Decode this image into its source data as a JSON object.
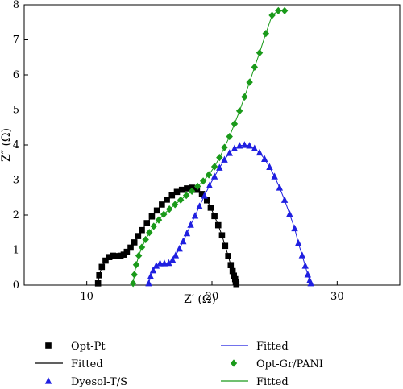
{
  "chart_data": {
    "type": "scatter",
    "title": "",
    "xlabel": "Z′ (Ω)",
    "ylabel": "Z″ (Ω)",
    "xlim": [
      5,
      35
    ],
    "ylim": [
      0,
      8
    ],
    "xticks": [
      10,
      20,
      30
    ],
    "yticks": [
      0,
      1,
      2,
      3,
      4,
      5,
      6,
      7,
      8
    ],
    "tick_labels_x": [
      "10",
      "20",
      "30"
    ],
    "tick_labels_y": [
      "0",
      "1",
      "2",
      "3",
      "4",
      "5",
      "6",
      "7",
      "8"
    ],
    "grid": false,
    "legend_position": "below",
    "legend": [
      {
        "label": "Opt-Pt",
        "marker": "square",
        "color": "#000000"
      },
      {
        "label": "Fitted",
        "line_color": "#000000"
      },
      {
        "label": "Dyesol-T/S",
        "marker": "triangle",
        "color": "#1f1fe0"
      },
      {
        "label": "Fitted",
        "line_color": "#1f1fe0"
      },
      {
        "label": "Opt-Gr/PANI",
        "marker": "diamond",
        "color": "#1a9a1a"
      },
      {
        "label": "Fitted",
        "line_color": "#1a9a1a"
      }
    ],
    "series": [
      {
        "name": "Opt-Pt",
        "marker": "square",
        "color": "#000000",
        "x": [
          10.9,
          11.0,
          11.2,
          11.5,
          11.8,
          12.1,
          12.4,
          12.7,
          12.95,
          13.2,
          13.5,
          13.8,
          14.1,
          14.4,
          14.8,
          15.2,
          15.6,
          16.0,
          16.4,
          16.8,
          17.2,
          17.6,
          18.0,
          18.4,
          18.8,
          19.2,
          19.6,
          19.9,
          20.2,
          20.5,
          20.8,
          21.05,
          21.3,
          21.5,
          21.65,
          21.75,
          21.85,
          21.9,
          21.95
        ],
        "y": [
          0.05,
          0.28,
          0.52,
          0.7,
          0.8,
          0.84,
          0.83,
          0.84,
          0.87,
          0.95,
          1.07,
          1.22,
          1.4,
          1.57,
          1.77,
          1.96,
          2.13,
          2.3,
          2.44,
          2.56,
          2.66,
          2.72,
          2.76,
          2.78,
          2.72,
          2.6,
          2.42,
          2.21,
          1.97,
          1.71,
          1.42,
          1.12,
          0.83,
          0.57,
          0.4,
          0.27,
          0.17,
          0.08,
          0.03
        ]
      },
      {
        "name": "Dyesol-T/S",
        "marker": "triangle",
        "color": "#1f1fe0",
        "x": [
          14.95,
          15.1,
          15.3,
          15.55,
          15.85,
          16.2,
          16.55,
          16.85,
          17.1,
          17.4,
          17.7,
          18.0,
          18.3,
          18.65,
          19.0,
          19.4,
          19.8,
          20.2,
          20.6,
          21.0,
          21.4,
          21.8,
          22.2,
          22.6,
          23.0,
          23.4,
          23.8,
          24.2,
          24.6,
          25.0,
          25.4,
          25.8,
          26.2,
          26.6,
          26.9,
          27.2,
          27.45,
          27.65,
          27.8,
          27.9
        ],
        "y": [
          0.05,
          0.25,
          0.42,
          0.55,
          0.62,
          0.62,
          0.63,
          0.72,
          0.85,
          1.04,
          1.25,
          1.48,
          1.72,
          1.98,
          2.25,
          2.55,
          2.84,
          3.1,
          3.35,
          3.58,
          3.77,
          3.9,
          3.98,
          4.0,
          3.98,
          3.9,
          3.78,
          3.6,
          3.37,
          3.1,
          2.78,
          2.43,
          2.03,
          1.62,
          1.2,
          0.85,
          0.55,
          0.3,
          0.13,
          0.05
        ]
      },
      {
        "name": "Opt-Gr/PANI",
        "marker": "diamond",
        "color": "#1a9a1a",
        "x": [
          13.7,
          13.8,
          13.95,
          14.15,
          14.4,
          14.7,
          15.0,
          15.35,
          15.75,
          16.15,
          16.6,
          17.05,
          17.5,
          17.95,
          18.4,
          18.85,
          19.3,
          19.75,
          20.2,
          20.6,
          21.0,
          21.4,
          21.8,
          22.2,
          22.6,
          23.0,
          23.4,
          23.8,
          24.3,
          24.8,
          25.3,
          25.8
        ],
        "y": [
          0.05,
          0.3,
          0.58,
          0.84,
          1.08,
          1.3,
          1.5,
          1.68,
          1.86,
          2.02,
          2.17,
          2.3,
          2.43,
          2.56,
          2.68,
          2.82,
          2.97,
          3.15,
          3.38,
          3.64,
          3.93,
          4.24,
          4.6,
          4.97,
          5.37,
          5.79,
          6.22,
          6.63,
          7.18,
          7.7,
          7.83,
          7.83
        ]
      }
    ]
  }
}
